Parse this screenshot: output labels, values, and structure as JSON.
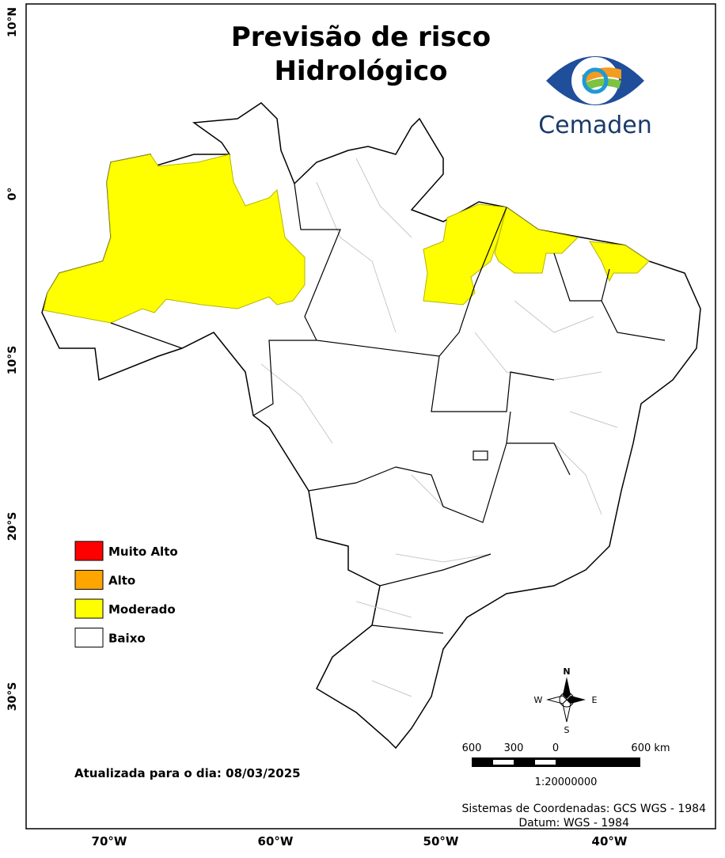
{
  "title": [
    "Previsão de risco",
    "Hidrológico"
  ],
  "logo": "Cemaden",
  "legend": [
    {
      "label": "Muito Alto",
      "color": "#ff0000"
    },
    {
      "label": "Alto",
      "color": "#ffa500"
    },
    {
      "label": "Moderado",
      "color": "#ffff00"
    },
    {
      "label": "Baixo",
      "color": "#ffffff"
    }
  ],
  "updated": "Atualizada para o dia: 08/03/2025",
  "scale_bar": {
    "labels": [
      "600",
      "300",
      "0",
      "600 km"
    ],
    "ratio": "1:20000000"
  },
  "compass": {
    "n": "N",
    "s": "S",
    "e": "E",
    "w": "W"
  },
  "credits": [
    "Sistemas de Coordenadas: GCS WGS - 1984",
    "Datum: WGS - 1984"
  ],
  "lat_labels": [
    "10°N",
    "0°",
    "10°S",
    "20°S",
    "30°S"
  ],
  "lon_labels": [
    "70°W",
    "60°W",
    "50°W",
    "40°W"
  ]
}
